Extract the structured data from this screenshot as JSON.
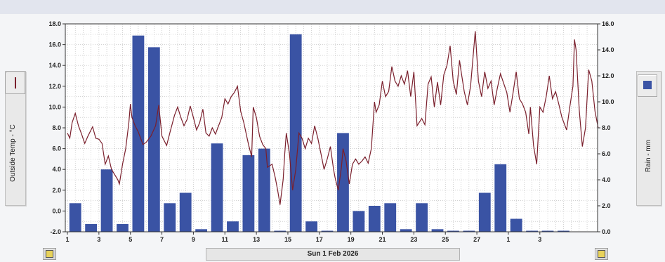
{
  "left_axis_title": "Outside Temp - °C",
  "right_axis_title": "Rain - mm",
  "date_label": "Sun 1 Feb 2026",
  "colors": {
    "temperature": "#7a1f2c",
    "rain": "#3a53a4",
    "grid": "#b8b8b8"
  },
  "icons": {
    "left_legend": "line-swatch-icon",
    "right_legend": "bar-swatch-icon",
    "left_lock": "lock-icon",
    "right_lock": "lock-icon"
  },
  "chart_data": {
    "type": "bar",
    "x_tick_labels": [
      "1",
      "3",
      "5",
      "7",
      "9",
      "11",
      "13",
      "15",
      "17",
      "19",
      "21",
      "23",
      "25",
      "27",
      "1",
      "3"
    ],
    "left_y_ticks": [
      "-2.0",
      "0.0",
      "2.0",
      "4.0",
      "6.0",
      "8.0",
      "10.0",
      "12.0",
      "14.0",
      "16.0",
      "18.0"
    ],
    "right_y_ticks": [
      "0.0",
      "2.0",
      "4.0",
      "6.0",
      "8.0",
      "10.0",
      "12.0",
      "14.0",
      "16.0"
    ],
    "left_ylim": [
      -2,
      18
    ],
    "right_ylim": [
      0,
      16
    ],
    "x_range_days": [
      1,
      32
    ],
    "grid": true,
    "series": [
      {
        "type": "bar",
        "axis": "right",
        "days": [
          1,
          2,
          3,
          4,
          5,
          6,
          7,
          8,
          9,
          10,
          11,
          12,
          13,
          14,
          15,
          16,
          17,
          18,
          19,
          20,
          21,
          22,
          23,
          24,
          25,
          26,
          27,
          28,
          29,
          30,
          31,
          32
        ],
        "values": [
          2.2,
          0.6,
          4.8,
          0.6,
          15.1,
          14.2,
          2.2,
          3.0,
          0.2,
          6.8,
          0.8,
          5.9,
          6.4,
          0.0,
          15.2,
          0.8,
          0.0,
          7.6,
          1.6,
          2.0,
          2.2,
          0.2,
          2.2,
          0.2,
          0.0,
          0.0,
          3.0,
          5.2,
          1.0,
          0.0,
          0.0,
          0.0
        ]
      },
      {
        "type": "line",
        "axis": "left",
        "points": [
          [
            1.0,
            7.5
          ],
          [
            1.15,
            7.0
          ],
          [
            1.3,
            8.5
          ],
          [
            1.5,
            9.4
          ],
          [
            1.7,
            8.2
          ],
          [
            1.9,
            7.4
          ],
          [
            2.1,
            6.5
          ],
          [
            2.3,
            7.2
          ],
          [
            2.6,
            8.1
          ],
          [
            2.8,
            7.0
          ],
          [
            3.0,
            6.9
          ],
          [
            3.2,
            6.5
          ],
          [
            3.4,
            4.5
          ],
          [
            3.6,
            5.3
          ],
          [
            3.8,
            4.0
          ],
          [
            4.0,
            3.5
          ],
          [
            4.2,
            3.0
          ],
          [
            4.3,
            2.6
          ],
          [
            4.5,
            4.5
          ],
          [
            4.7,
            6.0
          ],
          [
            4.9,
            8.5
          ],
          [
            5.0,
            10.3
          ],
          [
            5.1,
            9.0
          ],
          [
            5.3,
            8.2
          ],
          [
            5.5,
            7.6
          ],
          [
            5.8,
            6.4
          ],
          [
            6.0,
            6.6
          ],
          [
            6.3,
            7.2
          ],
          [
            6.6,
            8.2
          ],
          [
            6.8,
            10.2
          ],
          [
            7.0,
            7.2
          ],
          [
            7.3,
            6.3
          ],
          [
            7.5,
            7.5
          ],
          [
            7.8,
            9.2
          ],
          [
            8.0,
            10.0
          ],
          [
            8.2,
            9.0
          ],
          [
            8.4,
            8.2
          ],
          [
            8.6,
            8.8
          ],
          [
            8.8,
            10.1
          ],
          [
            9.0,
            9.0
          ],
          [
            9.2,
            7.8
          ],
          [
            9.4,
            8.5
          ],
          [
            9.6,
            9.8
          ],
          [
            9.8,
            7.5
          ],
          [
            10.0,
            7.2
          ],
          [
            10.2,
            8.0
          ],
          [
            10.4,
            7.4
          ],
          [
            10.6,
            8.2
          ],
          [
            10.8,
            9.0
          ],
          [
            11.0,
            10.8
          ],
          [
            11.2,
            10.3
          ],
          [
            11.4,
            11.0
          ],
          [
            11.6,
            11.4
          ],
          [
            11.8,
            12.0
          ],
          [
            12.0,
            9.6
          ],
          [
            12.2,
            8.5
          ],
          [
            12.5,
            6.4
          ],
          [
            12.7,
            5.2
          ],
          [
            12.8,
            10.0
          ],
          [
            13.0,
            9.0
          ],
          [
            13.2,
            7.2
          ],
          [
            13.4,
            6.4
          ],
          [
            13.6,
            6.0
          ],
          [
            13.7,
            4.2
          ],
          [
            14.0,
            4.5
          ],
          [
            14.2,
            3.2
          ],
          [
            14.35,
            2.0
          ],
          [
            14.5,
            0.6
          ],
          [
            14.7,
            3.0
          ],
          [
            14.8,
            5.5
          ],
          [
            14.9,
            7.5
          ],
          [
            15.1,
            5.5
          ],
          [
            15.3,
            2.0
          ],
          [
            15.5,
            4.0
          ],
          [
            15.7,
            7.5
          ],
          [
            15.9,
            7.0
          ],
          [
            16.1,
            6.0
          ],
          [
            16.3,
            7.0
          ],
          [
            16.5,
            6.5
          ],
          [
            16.7,
            8.2
          ],
          [
            16.9,
            7.0
          ],
          [
            17.1,
            5.5
          ],
          [
            17.3,
            4.0
          ],
          [
            17.5,
            5.0
          ],
          [
            17.7,
            6.2
          ],
          [
            17.9,
            4.0
          ],
          [
            18.0,
            3.2
          ],
          [
            18.2,
            2.0
          ],
          [
            18.4,
            4.2
          ],
          [
            18.5,
            6.0
          ],
          [
            18.7,
            4.8
          ],
          [
            18.9,
            2.6
          ],
          [
            19.1,
            4.5
          ],
          [
            19.3,
            5.0
          ],
          [
            19.5,
            4.5
          ],
          [
            19.7,
            4.8
          ],
          [
            19.9,
            5.2
          ],
          [
            20.1,
            4.6
          ],
          [
            20.3,
            6.0
          ],
          [
            20.5,
            10.5
          ],
          [
            20.6,
            9.5
          ],
          [
            20.8,
            10.2
          ],
          [
            21.0,
            12.5
          ],
          [
            21.2,
            11.0
          ],
          [
            21.4,
            11.5
          ],
          [
            21.6,
            13.9
          ],
          [
            21.8,
            12.5
          ],
          [
            22.0,
            12.0
          ],
          [
            22.2,
            13.0
          ],
          [
            22.4,
            12.2
          ],
          [
            22.6,
            13.5
          ],
          [
            22.8,
            11.0
          ],
          [
            23.0,
            13.4
          ],
          [
            23.2,
            8.2
          ],
          [
            23.5,
            8.9
          ],
          [
            23.7,
            8.3
          ],
          [
            23.9,
            12.2
          ],
          [
            24.1,
            12.9
          ],
          [
            24.3,
            10.0
          ],
          [
            24.5,
            12.4
          ],
          [
            24.7,
            10.2
          ],
          [
            24.9,
            13.1
          ],
          [
            25.1,
            14.0
          ],
          [
            25.3,
            15.9
          ],
          [
            25.5,
            12.5
          ],
          [
            25.7,
            11.2
          ],
          [
            25.9,
            14.5
          ],
          [
            26.0,
            13.4
          ],
          [
            26.2,
            11.5
          ],
          [
            26.4,
            10.2
          ],
          [
            26.6,
            12.0
          ],
          [
            26.9,
            17.3
          ],
          [
            27.1,
            12.5
          ],
          [
            27.3,
            11.0
          ],
          [
            27.5,
            13.4
          ],
          [
            27.7,
            11.8
          ],
          [
            27.9,
            12.5
          ],
          [
            28.1,
            10.2
          ],
          [
            28.3,
            11.8
          ],
          [
            28.5,
            13.2
          ],
          [
            28.7,
            12.3
          ],
          [
            28.9,
            11.4
          ],
          [
            29.1,
            9.5
          ],
          [
            29.3,
            11.4
          ],
          [
            29.5,
            13.4
          ],
          [
            29.7,
            10.8
          ],
          [
            29.9,
            10.3
          ],
          [
            30.1,
            9.5
          ],
          [
            30.3,
            7.4
          ],
          [
            30.4,
            10.0
          ],
          [
            30.6,
            6.3
          ],
          [
            30.8,
            4.5
          ],
          [
            31.0,
            10.0
          ],
          [
            31.2,
            9.5
          ],
          [
            31.4,
            11.0
          ],
          [
            31.6,
            13.0
          ],
          [
            31.8,
            10.8
          ],
          [
            32.0,
            11.5
          ],
          [
            32.2,
            10.3
          ],
          [
            32.4,
            9.0
          ],
          [
            32.7,
            7.8
          ],
          [
            32.9,
            10.0
          ],
          [
            33.1,
            12.0
          ],
          [
            33.2,
            16.5
          ],
          [
            33.3,
            15.5
          ],
          [
            33.5,
            9.8
          ],
          [
            33.7,
            6.2
          ],
          [
            33.9,
            8.0
          ],
          [
            34.1,
            13.6
          ],
          [
            34.3,
            12.5
          ],
          [
            34.5,
            9.6
          ],
          [
            34.7,
            8.0
          ]
        ]
      }
    ]
  }
}
